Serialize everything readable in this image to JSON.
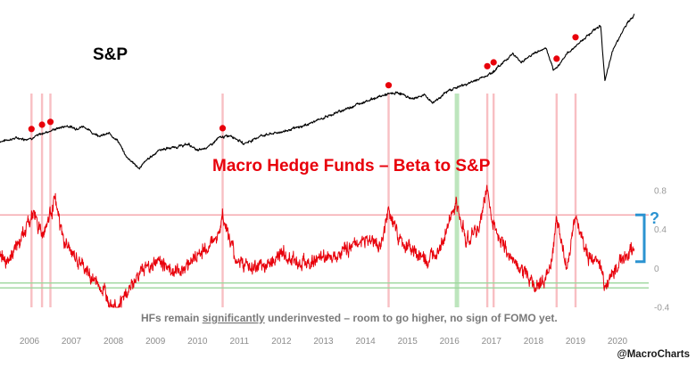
{
  "chart_data": [
    {
      "type": "line",
      "title": "S&P",
      "series": [
        {
          "x": [
            2005.8,
            2006.0,
            2006.2,
            2006.4,
            2006.6,
            2006.8,
            2007.0,
            2007.2,
            2007.4,
            2007.6,
            2007.8,
            2008.0,
            2008.2,
            2008.4,
            2008.6,
            2008.8,
            2008.95,
            2009.1,
            2009.3,
            2009.6,
            2010.0,
            2010.3,
            2010.5,
            2010.8,
            2011.0,
            2011.3,
            2011.6,
            2011.8,
            2012.0,
            2012.5,
            2013.0,
            2013.5,
            2014.0,
            2014.5,
            2015.0,
            2015.3,
            2015.6,
            2015.9,
            2016.1,
            2016.5,
            2017.0,
            2017.5,
            2018.0,
            2018.2,
            2018.5,
            2018.8,
            2018.98,
            2019.3,
            2019.6,
            2019.9,
            2020.1,
            2020.2,
            2020.4,
            2020.7,
            2020.9
          ],
          "y": [
            1230,
            1260,
            1290,
            1270,
            1300,
            1370,
            1420,
            1470,
            1510,
            1460,
            1500,
            1380,
            1330,
            1370,
            1250,
            960,
            870,
            740,
            900,
            1080,
            1130,
            1180,
            1060,
            1150,
            1290,
            1340,
            1190,
            1250,
            1330,
            1400,
            1500,
            1650,
            1800,
            1950,
            2070,
            2100,
            1990,
            2060,
            1920,
            2150,
            2280,
            2450,
            2800,
            2650,
            2800,
            2900,
            2480,
            2800,
            3000,
            3200,
            3300,
            2300,
            2900,
            3300,
            3500
          ]
        }
      ],
      "markers_x": [
        2006.55,
        2006.8,
        2007.0,
        2011.1,
        2015.05,
        2017.4,
        2017.55,
        2019.05,
        2019.5
      ]
    },
    {
      "type": "line",
      "title": "Macro Hedge Funds – Beta to S&P",
      "xlim": [
        2005.8,
        2021.2
      ],
      "ylim": [
        -0.4,
        0.8
      ],
      "yticks": [
        "0.8",
        "0.4",
        "0",
        "-0.4"
      ],
      "xticks": [
        "2006",
        "2007",
        "2008",
        "2009",
        "2010",
        "2011",
        "2012",
        "2013",
        "2014",
        "2015",
        "2016",
        "2017",
        "2018",
        "2019",
        "2020"
      ],
      "series": [
        {
          "x": [
            2005.8,
            2006.0,
            2006.3,
            2006.6,
            2006.8,
            2006.95,
            2007.1,
            2007.3,
            2007.6,
            2008.0,
            2008.3,
            2008.6,
            2008.9,
            2009.2,
            2009.6,
            2010.0,
            2010.4,
            2010.7,
            2011.0,
            2011.1,
            2011.4,
            2011.8,
            2012.0,
            2012.5,
            2013.0,
            2013.5,
            2014.0,
            2014.5,
            2014.9,
            2015.05,
            2015.3,
            2015.6,
            2016.0,
            2016.4,
            2016.65,
            2016.9,
            2017.2,
            2017.4,
            2017.5,
            2017.7,
            2018.0,
            2018.3,
            2018.6,
            2018.9,
            2019.05,
            2019.3,
            2019.5,
            2019.8,
            2020.1,
            2020.2,
            2020.3,
            2020.6,
            2020.9
          ],
          "y": [
            0.15,
            0.1,
            0.3,
            0.58,
            0.35,
            0.5,
            0.72,
            0.3,
            0.1,
            -0.1,
            -0.25,
            -0.4,
            -0.2,
            0.0,
            0.08,
            -0.05,
            0.1,
            0.2,
            0.35,
            0.55,
            0.1,
            0.0,
            0.0,
            0.15,
            0.05,
            0.1,
            0.2,
            0.3,
            0.25,
            0.6,
            0.3,
            0.2,
            0.05,
            0.35,
            0.65,
            0.3,
            0.4,
            0.85,
            0.5,
            0.3,
            0.1,
            -0.05,
            -0.2,
            0.0,
            0.5,
            0.0,
            0.52,
            0.1,
            0.05,
            -0.2,
            -0.1,
            0.1,
            0.2
          ]
        }
      ],
      "reference_lines_y": [
        0.55,
        -0.15,
        -0.2
      ],
      "highlight_x": [
        2006.55,
        2006.8,
        2007.0,
        2011.1,
        2015.05,
        2016.65,
        2017.4,
        2017.55,
        2019.05,
        2019.5
      ],
      "question_mark": "?",
      "caption_parts": [
        "HFs remain ",
        "significantly",
        " underinvested – room to go higher, no sign of FOMO yet."
      ]
    }
  ],
  "credit": "@MacroCharts",
  "colors": {
    "sp_line": "#000000",
    "beta_line": "#e8000b",
    "marker": "#e8000b",
    "highlight_red": "#f7b8bc",
    "highlight_green": "#b6e2b6",
    "ref_red": "#f5a3a8",
    "ref_green": "#9bd69b",
    "bracket": "#2b93d1"
  }
}
